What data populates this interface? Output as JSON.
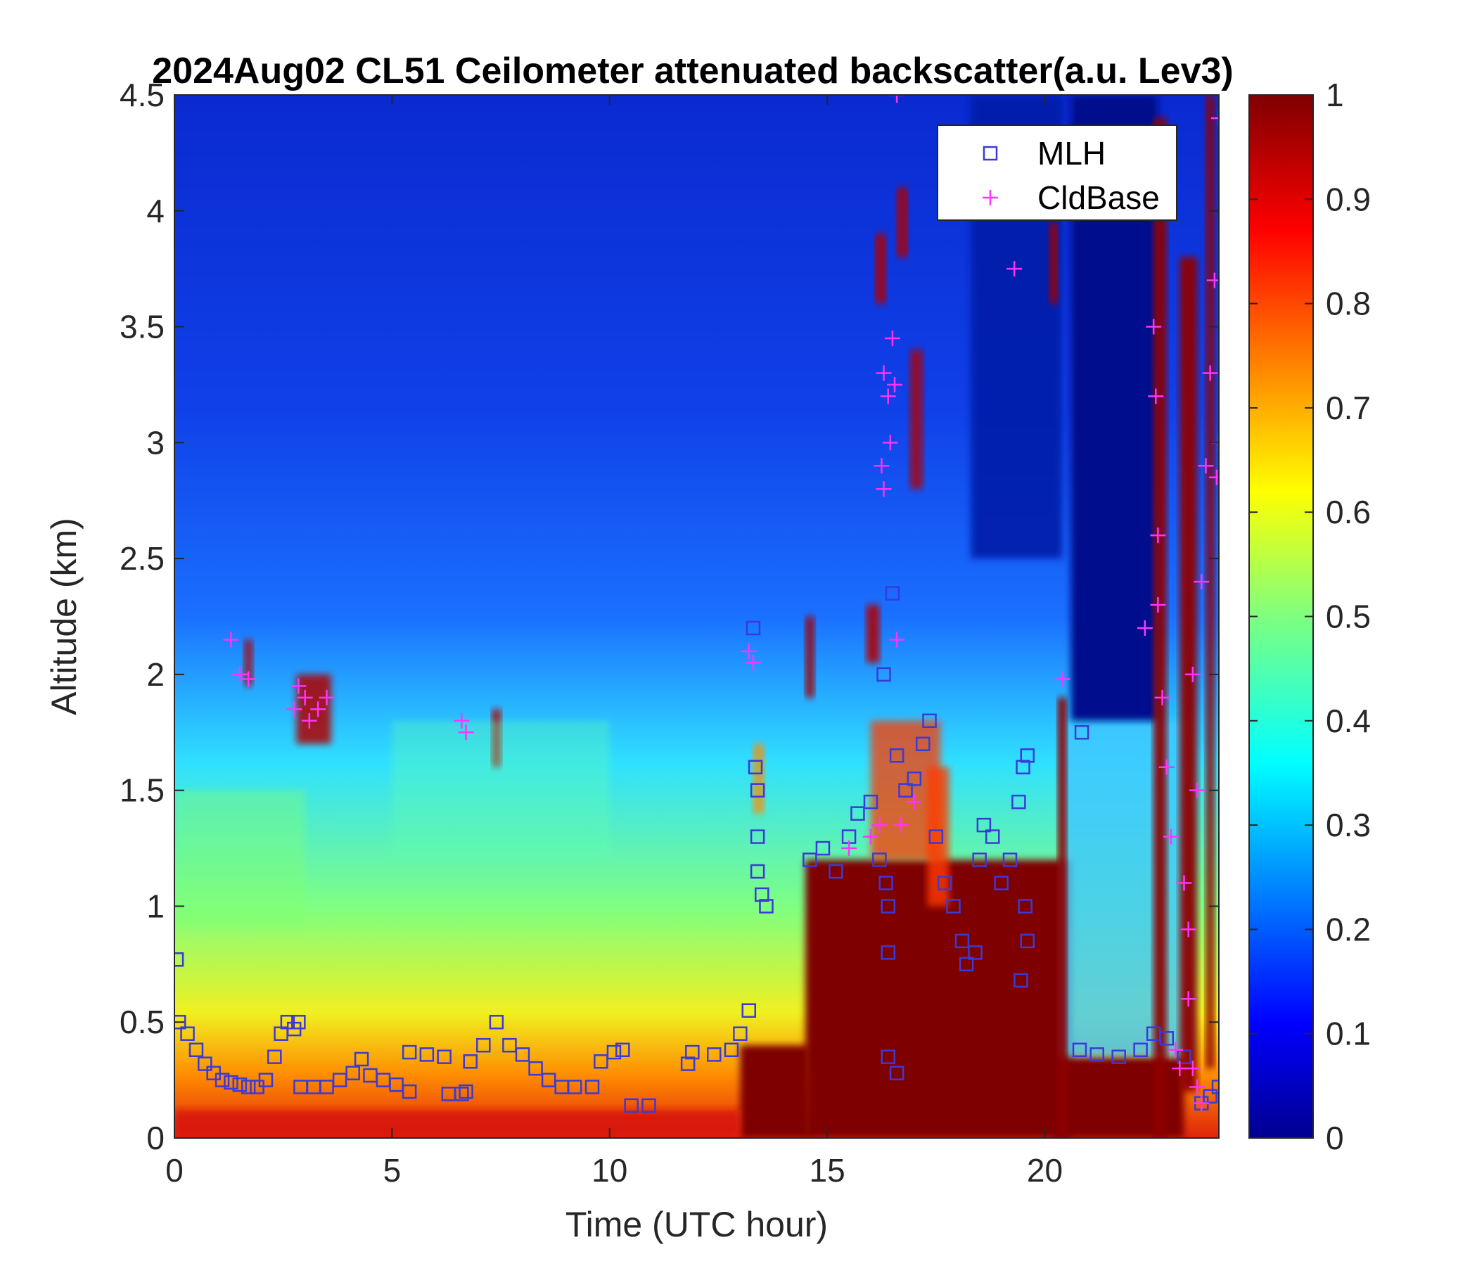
{
  "title": "2024Aug02 CL51 Ceilometer attenuated backscatter(a.u. Lev3)",
  "colors": {
    "mlh_marker": "#3a3ad8",
    "cldbase_marker": "#ff33ff",
    "background": "#ffffff"
  },
  "chart_data": {
    "type": "heatmap",
    "title": "2024Aug02 CL51 Ceilometer attenuated backscatter(a.u. Lev3)",
    "xlabel": "Time (UTC hour)",
    "ylabel": "Altitude (km)",
    "xlim": [
      0,
      24
    ],
    "ylim": [
      0,
      4.5
    ],
    "xticks": [
      "0",
      "5",
      "10",
      "15",
      "20"
    ],
    "yticks": [
      "0",
      "0.5",
      "1",
      "1.5",
      "2",
      "2.5",
      "3",
      "3.5",
      "4",
      "4.5"
    ],
    "colorbar": {
      "colormap": "jet",
      "range": [
        0,
        1
      ],
      "ticks": [
        "0",
        "0.1",
        "0.2",
        "0.3",
        "0.4",
        "0.5",
        "0.6",
        "0.7",
        "0.8",
        "0.9",
        "1"
      ]
    },
    "legend": {
      "placement": "top-right",
      "entries": [
        {
          "label": "MLH",
          "marker": "square",
          "color": "#3a3ad8"
        },
        {
          "label": "CldBase",
          "marker": "plus",
          "color": "#ff33ff"
        }
      ]
    },
    "series": [
      {
        "name": "MLH",
        "marker": "square",
        "points": [
          [
            0.05,
            0.77
          ],
          [
            0.1,
            0.5
          ],
          [
            0.3,
            0.45
          ],
          [
            0.5,
            0.38
          ],
          [
            0.7,
            0.32
          ],
          [
            0.9,
            0.28
          ],
          [
            1.1,
            0.25
          ],
          [
            1.3,
            0.24
          ],
          [
            1.5,
            0.23
          ],
          [
            1.7,
            0.22
          ],
          [
            1.9,
            0.22
          ],
          [
            2.1,
            0.25
          ],
          [
            2.3,
            0.35
          ],
          [
            2.45,
            0.45
          ],
          [
            2.6,
            0.5
          ],
          [
            2.75,
            0.47
          ],
          [
            2.85,
            0.5
          ],
          [
            2.9,
            0.22
          ],
          [
            3.2,
            0.22
          ],
          [
            3.5,
            0.22
          ],
          [
            3.8,
            0.25
          ],
          [
            4.1,
            0.28
          ],
          [
            4.3,
            0.34
          ],
          [
            4.5,
            0.27
          ],
          [
            4.8,
            0.25
          ],
          [
            5.1,
            0.23
          ],
          [
            5.4,
            0.2
          ],
          [
            5.4,
            0.37
          ],
          [
            5.8,
            0.36
          ],
          [
            6.2,
            0.35
          ],
          [
            6.3,
            0.19
          ],
          [
            6.6,
            0.19
          ],
          [
            6.7,
            0.2
          ],
          [
            6.8,
            0.33
          ],
          [
            7.1,
            0.4
          ],
          [
            7.4,
            0.5
          ],
          [
            7.7,
            0.4
          ],
          [
            8.0,
            0.36
          ],
          [
            8.3,
            0.3
          ],
          [
            8.6,
            0.25
          ],
          [
            8.9,
            0.22
          ],
          [
            9.2,
            0.22
          ],
          [
            9.6,
            0.22
          ],
          [
            9.8,
            0.33
          ],
          [
            10.1,
            0.37
          ],
          [
            10.3,
            0.38
          ],
          [
            10.5,
            0.14
          ],
          [
            10.9,
            0.14
          ],
          [
            11.8,
            0.32
          ],
          [
            11.9,
            0.37
          ],
          [
            12.4,
            0.36
          ],
          [
            12.8,
            0.38
          ],
          [
            13.0,
            0.45
          ],
          [
            13.2,
            0.55
          ],
          [
            13.3,
            2.2
          ],
          [
            13.35,
            1.6
          ],
          [
            13.4,
            1.5
          ],
          [
            13.4,
            1.3
          ],
          [
            13.4,
            1.15
          ],
          [
            13.5,
            1.05
          ],
          [
            13.6,
            1.0
          ],
          [
            14.6,
            1.2
          ],
          [
            14.9,
            1.25
          ],
          [
            15.2,
            1.15
          ],
          [
            15.5,
            1.3
          ],
          [
            15.7,
            1.4
          ],
          [
            16.0,
            1.45
          ],
          [
            16.2,
            1.2
          ],
          [
            16.3,
            2.0
          ],
          [
            16.35,
            1.1
          ],
          [
            16.4,
            1.0
          ],
          [
            16.4,
            0.8
          ],
          [
            16.4,
            0.35
          ],
          [
            16.5,
            2.35
          ],
          [
            16.6,
            0.28
          ],
          [
            16.6,
            1.65
          ],
          [
            16.8,
            1.5
          ],
          [
            17.0,
            1.55
          ],
          [
            17.2,
            1.7
          ],
          [
            17.35,
            1.8
          ],
          [
            17.5,
            1.3
          ],
          [
            17.7,
            1.1
          ],
          [
            17.9,
            1.0
          ],
          [
            18.1,
            0.85
          ],
          [
            18.2,
            0.75
          ],
          [
            18.4,
            0.8
          ],
          [
            18.5,
            1.2
          ],
          [
            18.6,
            1.35
          ],
          [
            18.8,
            1.3
          ],
          [
            19.0,
            1.1
          ],
          [
            19.2,
            1.2
          ],
          [
            19.4,
            1.45
          ],
          [
            19.5,
            1.6
          ],
          [
            19.6,
            1.65
          ],
          [
            19.55,
            1.0
          ],
          [
            19.6,
            0.85
          ],
          [
            19.45,
            0.68
          ],
          [
            20.85,
            1.75
          ],
          [
            20.8,
            0.38
          ],
          [
            21.2,
            0.36
          ],
          [
            21.7,
            0.35
          ],
          [
            22.2,
            0.38
          ],
          [
            22.5,
            0.45
          ],
          [
            22.8,
            0.43
          ],
          [
            23.2,
            0.35
          ],
          [
            23.6,
            0.15
          ],
          [
            23.8,
            0.18
          ],
          [
            24.0,
            0.22
          ]
        ]
      },
      {
        "name": "CldBase",
        "marker": "plus",
        "points": [
          [
            1.3,
            2.15
          ],
          [
            1.5,
            2.0
          ],
          [
            1.7,
            1.98
          ],
          [
            2.75,
            1.85
          ],
          [
            2.85,
            1.95
          ],
          [
            3.0,
            1.9
          ],
          [
            3.1,
            1.8
          ],
          [
            3.3,
            1.85
          ],
          [
            3.5,
            1.9
          ],
          [
            6.6,
            1.8
          ],
          [
            6.7,
            1.75
          ],
          [
            13.2,
            2.1
          ],
          [
            13.3,
            2.05
          ],
          [
            15.5,
            1.25
          ],
          [
            16.0,
            1.3
          ],
          [
            16.2,
            1.35
          ],
          [
            16.25,
            2.9
          ],
          [
            16.3,
            2.8
          ],
          [
            16.3,
            3.3
          ],
          [
            16.4,
            3.2
          ],
          [
            16.45,
            3.0
          ],
          [
            16.5,
            3.45
          ],
          [
            16.55,
            3.25
          ],
          [
            16.6,
            4.5
          ],
          [
            16.6,
            2.15
          ],
          [
            16.7,
            1.35
          ],
          [
            17.0,
            1.45
          ],
          [
            19.3,
            3.75
          ],
          [
            20.4,
            1.98
          ],
          [
            22.3,
            2.2
          ],
          [
            22.5,
            3.5
          ],
          [
            22.55,
            3.2
          ],
          [
            22.6,
            2.6
          ],
          [
            22.6,
            2.3
          ],
          [
            22.7,
            1.9
          ],
          [
            22.8,
            1.6
          ],
          [
            22.9,
            1.3
          ],
          [
            23.0,
            0.38
          ],
          [
            23.1,
            0.3
          ],
          [
            23.3,
            0.6
          ],
          [
            23.4,
            0.3
          ],
          [
            23.5,
            0.22
          ],
          [
            23.6,
            0.15
          ],
          [
            23.4,
            2.0
          ],
          [
            23.5,
            1.5
          ],
          [
            23.6,
            2.4
          ],
          [
            23.7,
            2.9
          ],
          [
            23.8,
            3.3
          ],
          [
            23.9,
            3.7
          ],
          [
            24.0,
            4.4
          ],
          [
            24.0,
            3.0
          ],
          [
            23.95,
            2.85
          ],
          [
            23.2,
            1.1
          ],
          [
            23.3,
            0.9
          ]
        ]
      }
    ]
  }
}
